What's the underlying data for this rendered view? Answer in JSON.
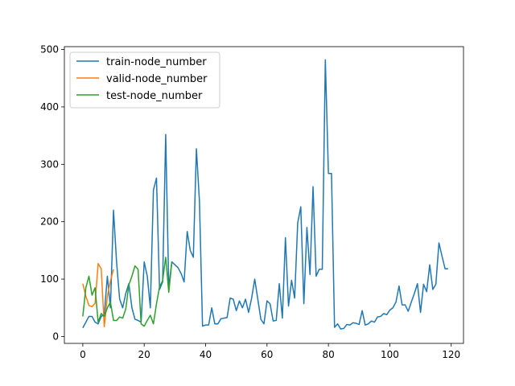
{
  "chart_data": {
    "type": "line",
    "title": "",
    "xlabel": "",
    "ylabel": "",
    "xlim": [
      -6,
      124
    ],
    "ylim": [
      -12,
      505
    ],
    "xticks": [
      0,
      20,
      40,
      60,
      80,
      100,
      120
    ],
    "yticks": [
      0,
      100,
      200,
      300,
      400,
      500
    ],
    "grid": false,
    "legend_position": "top-left",
    "series": [
      {
        "name": "train-node_number",
        "color": "#1f77b4",
        "x": [
          0,
          1,
          2,
          3,
          4,
          5,
          6,
          7,
          8,
          9,
          10,
          11,
          12,
          13,
          14,
          15,
          16,
          17,
          18,
          19,
          20,
          21,
          22,
          23,
          24,
          25,
          26,
          27,
          28,
          29,
          30,
          31,
          32,
          33,
          34,
          35,
          36,
          37,
          38,
          39,
          40,
          41,
          42,
          43,
          44,
          45,
          46,
          47,
          48,
          49,
          50,
          51,
          52,
          53,
          54,
          55,
          56,
          57,
          58,
          59,
          60,
          61,
          62,
          63,
          64,
          65,
          66,
          67,
          68,
          69,
          70,
          71,
          72,
          73,
          74,
          75,
          76,
          77,
          78,
          79,
          80,
          81,
          82,
          83,
          84,
          85,
          86,
          87,
          88,
          89,
          90,
          91,
          92,
          93,
          94,
          95,
          96,
          97,
          98,
          99,
          100,
          101,
          102,
          103,
          104,
          105,
          106,
          107,
          108,
          109,
          110,
          111,
          112,
          113,
          114,
          115,
          116,
          117,
          118,
          119
        ],
        "values": [
          15,
          25,
          35,
          35,
          25,
          22,
          35,
          38,
          105,
          50,
          220,
          130,
          65,
          50,
          75,
          92,
          50,
          30,
          28,
          25,
          130,
          105,
          50,
          255,
          276,
          82,
          95,
          352,
          85,
          130,
          125,
          120,
          110,
          95,
          183,
          150,
          138,
          327,
          235,
          18,
          20,
          20,
          50,
          22,
          22,
          31,
          32,
          33,
          67,
          65,
          45,
          62,
          50,
          65,
          42,
          67,
          100,
          65,
          30,
          22,
          62,
          57,
          27,
          28,
          92,
          32,
          172,
          53,
          98,
          67,
          198,
          226,
          57,
          190,
          108,
          261,
          105,
          117,
          117,
          482,
          284,
          284,
          16,
          22,
          13,
          14,
          21,
          20,
          24,
          23,
          21,
          45,
          20,
          22,
          27,
          25,
          34,
          35,
          40,
          38,
          46,
          50,
          60,
          88,
          55,
          55,
          44,
          60,
          75,
          92,
          42,
          91,
          78,
          125,
          82,
          91,
          163,
          140,
          118,
          118
        ]
      },
      {
        "name": "valid-node_number",
        "color": "#ff7f0e",
        "x": [
          0,
          1,
          2,
          3,
          4,
          5,
          6,
          7,
          8,
          9,
          10
        ],
        "values": [
          92,
          70,
          54,
          52,
          58,
          127,
          118,
          17,
          70,
          97,
          117
        ]
      },
      {
        "name": "test-node_number",
        "color": "#2ca02c",
        "x": [
          0,
          1,
          2,
          3,
          4,
          5,
          6,
          7,
          8,
          9,
          10,
          11,
          12,
          13,
          14,
          15,
          16,
          17,
          18,
          19,
          20,
          21,
          22,
          23,
          24,
          25,
          26,
          27,
          28,
          29
        ],
        "values": [
          35,
          85,
          105,
          72,
          85,
          25,
          40,
          35,
          50,
          60,
          28,
          28,
          34,
          32,
          48,
          90,
          105,
          123,
          117,
          22,
          18,
          28,
          37,
          22,
          57,
          87,
          97,
          138,
          77,
          130
        ]
      }
    ]
  }
}
